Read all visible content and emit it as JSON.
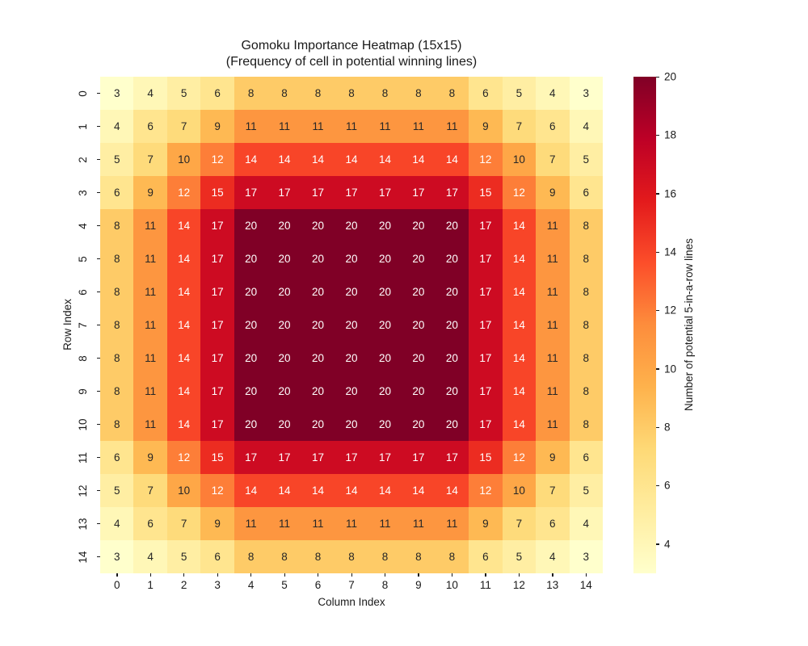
{
  "chart_data": {
    "type": "heatmap",
    "title_line1": "Gomoku Importance Heatmap (15x15)",
    "title_line2": "(Frequency of cell in potential winning lines)",
    "title": "Gomoku Importance Heatmap (15x15)\n(Frequency of cell in potential winning lines)",
    "xlabel": "Column Index",
    "ylabel": "Row Index",
    "x_ticklabels": [
      "0",
      "1",
      "2",
      "3",
      "4",
      "5",
      "6",
      "7",
      "8",
      "9",
      "10",
      "11",
      "12",
      "13",
      "14"
    ],
    "y_ticklabels": [
      "0",
      "1",
      "2",
      "3",
      "4",
      "5",
      "6",
      "7",
      "8",
      "9",
      "10",
      "11",
      "12",
      "13",
      "14"
    ],
    "matrix": [
      [
        3,
        4,
        5,
        6,
        8,
        8,
        8,
        8,
        8,
        8,
        8,
        6,
        5,
        4,
        3
      ],
      [
        4,
        6,
        7,
        9,
        11,
        11,
        11,
        11,
        11,
        11,
        11,
        9,
        7,
        6,
        4
      ],
      [
        5,
        7,
        10,
        12,
        14,
        14,
        14,
        14,
        14,
        14,
        14,
        12,
        10,
        7,
        5
      ],
      [
        6,
        9,
        12,
        15,
        17,
        17,
        17,
        17,
        17,
        17,
        17,
        15,
        12,
        9,
        6
      ],
      [
        8,
        11,
        14,
        17,
        20,
        20,
        20,
        20,
        20,
        20,
        20,
        17,
        14,
        11,
        8
      ],
      [
        8,
        11,
        14,
        17,
        20,
        20,
        20,
        20,
        20,
        20,
        20,
        17,
        14,
        11,
        8
      ],
      [
        8,
        11,
        14,
        17,
        20,
        20,
        20,
        20,
        20,
        20,
        20,
        17,
        14,
        11,
        8
      ],
      [
        8,
        11,
        14,
        17,
        20,
        20,
        20,
        20,
        20,
        20,
        20,
        17,
        14,
        11,
        8
      ],
      [
        8,
        11,
        14,
        17,
        20,
        20,
        20,
        20,
        20,
        20,
        20,
        17,
        14,
        11,
        8
      ],
      [
        8,
        11,
        14,
        17,
        20,
        20,
        20,
        20,
        20,
        20,
        20,
        17,
        14,
        11,
        8
      ],
      [
        8,
        11,
        14,
        17,
        20,
        20,
        20,
        20,
        20,
        20,
        20,
        17,
        14,
        11,
        8
      ],
      [
        6,
        9,
        12,
        15,
        17,
        17,
        17,
        17,
        17,
        17,
        17,
        15,
        12,
        9,
        6
      ],
      [
        5,
        7,
        10,
        12,
        14,
        14,
        14,
        14,
        14,
        14,
        14,
        12,
        10,
        7,
        5
      ],
      [
        4,
        6,
        7,
        9,
        11,
        11,
        11,
        11,
        11,
        11,
        11,
        9,
        7,
        6,
        4
      ],
      [
        3,
        4,
        5,
        6,
        8,
        8,
        8,
        8,
        8,
        8,
        8,
        6,
        5,
        4,
        3
      ]
    ],
    "vmin": 3,
    "vmax": 20,
    "annotated": true,
    "grid_lines": false,
    "colormap": {
      "name": "YlOrRd",
      "stops": [
        "#ffffcc",
        "#ffeda0",
        "#fed976",
        "#feb24c",
        "#fd8d3c",
        "#fc4e2a",
        "#e31a1c",
        "#bd0026",
        "#800026"
      ]
    },
    "colorbar": {
      "label": "Number of potential 5-in-a-row lines",
      "ticks": [
        4,
        6,
        8,
        10,
        12,
        14,
        16,
        18,
        20
      ],
      "position": "right"
    },
    "colors": {
      "annotation_dark_text": "#262626",
      "annotation_light_text": "#ffffff",
      "axis_text": "#1a1a1a",
      "background": "#ffffff"
    }
  }
}
